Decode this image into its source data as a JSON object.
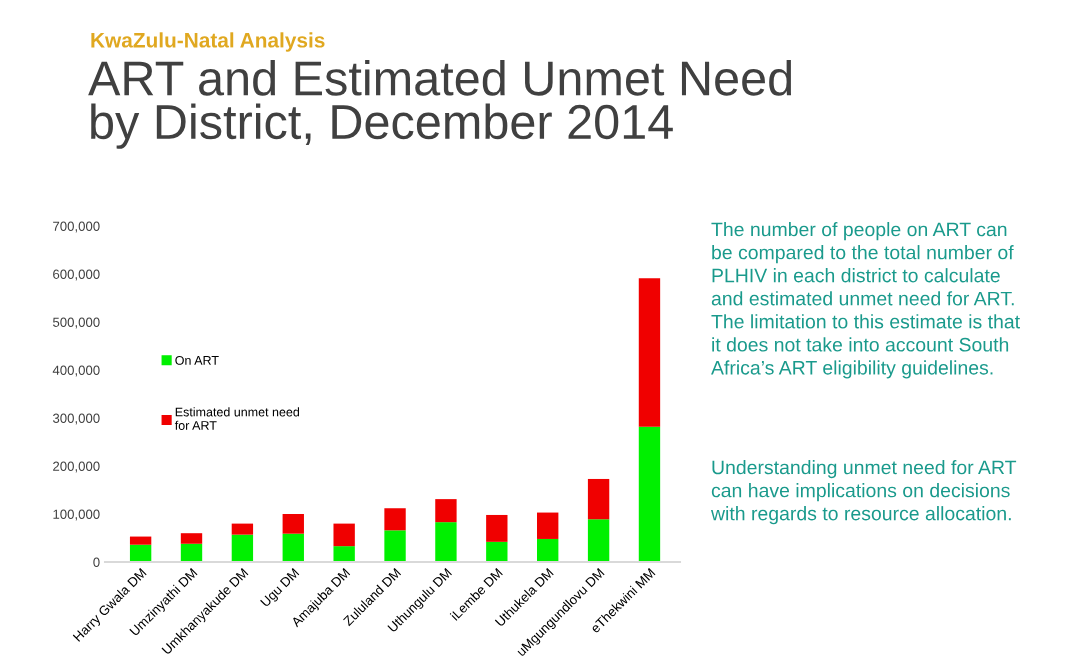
{
  "chart_data": {
    "type": "bar",
    "stacked": true,
    "subtitle": "KwaZulu-Natal Analysis",
    "title": "ART and Estimated Unmet Need\nby District, December 2014",
    "categories": [
      "Harry Gwala DM",
      "Umzinyathi DM",
      "Umkhanyakude DM",
      "Ugu DM",
      "Amajuba DM",
      "Zululand DM",
      "Uthungulu DM",
      "iLembe DM",
      "Uthukela DM",
      "uMgungundlovu DM",
      "eThekwini MM"
    ],
    "series": [
      {
        "name": "On ART",
        "color": "#00f000",
        "values": [
          36000,
          38000,
          57000,
          59000,
          33000,
          66000,
          83000,
          42000,
          48000,
          89000,
          282000
        ]
      },
      {
        "name": "Estimated unmet need\nfor ART",
        "color": "#f00000",
        "values": [
          17000,
          22000,
          23000,
          41000,
          47000,
          46000,
          48000,
          56000,
          55000,
          84000,
          309000
        ]
      }
    ],
    "ylim": [
      0,
      700000
    ],
    "yticks": [
      {
        "value": 0,
        "label": "0"
      },
      {
        "value": 100000,
        "label": "100,000"
      },
      {
        "value": 200000,
        "label": "200,000"
      },
      {
        "value": 300000,
        "label": "300,000"
      },
      {
        "value": 400000,
        "label": "400,000"
      },
      {
        "value": 500000,
        "label": "500,000"
      },
      {
        "value": 600000,
        "label": "600,000"
      },
      {
        "value": 700000,
        "label": "700,000"
      }
    ],
    "grid": false,
    "legend": "left",
    "annotations": [
      "The number of people on ART can\nbe compared to the total number of\nPLHIV in each district to calculate\nand estimated unmet need for ART.\nThe limitation to this estimate is that\nit does not take into account South\nAfrica’s ART eligibility guidelines.",
      "Understanding unmet need for ART\ncan have implications on decisions\nwith regards to resource allocation."
    ]
  }
}
